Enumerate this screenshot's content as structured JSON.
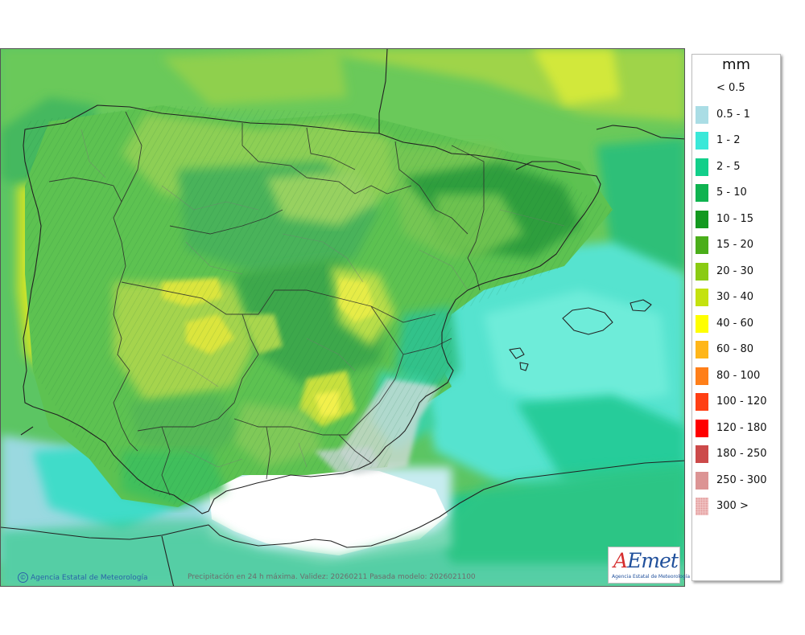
{
  "map": {
    "title": "Precipitación en 24 h máxima. Validez: 20260211 Pasada modelo: 2026021100",
    "credit": "Agencia Estatal de Meteorología",
    "credit_icon": "copyright-icon",
    "logo_text": "AEmet",
    "logo_subtext": "Agencia Estatal de Meteorología"
  },
  "legend": {
    "unit": "mm",
    "items": [
      {
        "label": "< 0.5",
        "color": "#ffffff"
      },
      {
        "label": "0.5 - 1",
        "color": "#aadde5"
      },
      {
        "label": "1 - 2",
        "color": "#3ae8d8"
      },
      {
        "label": "2 - 5",
        "color": "#12cf8a"
      },
      {
        "label": "5 - 10",
        "color": "#0fb350"
      },
      {
        "label": "10 - 15",
        "color": "#13991f"
      },
      {
        "label": "15 - 20",
        "color": "#4aae1a"
      },
      {
        "label": "20 - 30",
        "color": "#8acb13"
      },
      {
        "label": "30 - 40",
        "color": "#c4e20f"
      },
      {
        "label": "40 - 60",
        "color": "#ffff00"
      },
      {
        "label": "60 - 80",
        "color": "#ffb619"
      },
      {
        "label": "80 - 100",
        "color": "#ff7f19"
      },
      {
        "label": "100 - 120",
        "color": "#ff3f14"
      },
      {
        "label": "120 - 180",
        "color": "#ff0000"
      },
      {
        "label": "180 - 250",
        "color": "#cc4a4a"
      },
      {
        "label": "250 - 300",
        "color": "#dc9494"
      },
      {
        "label": "300 >",
        "color": "#f2c8c8"
      }
    ]
  }
}
